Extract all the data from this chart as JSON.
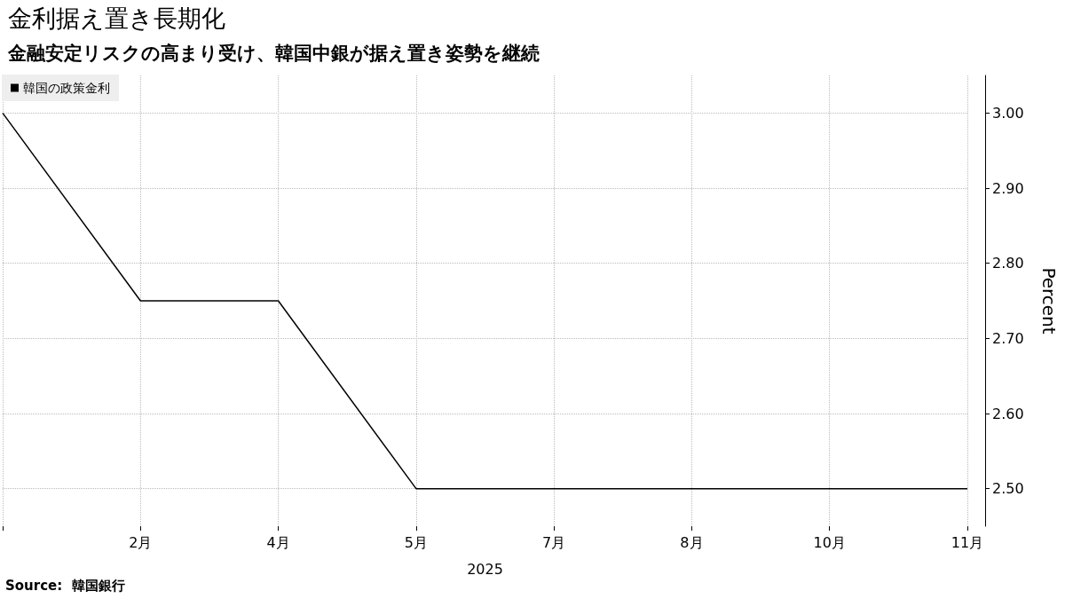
{
  "chart_data": {
    "type": "line",
    "title": "金利据え置き長期化",
    "subtitle": "金融安定リスクの高まり受け、韓国中銀が据え置き姿勢を継続",
    "categories": [
      null,
      "2月",
      "4月",
      "5月",
      "7月",
      "8月",
      "10月",
      "11月"
    ],
    "series": [
      {
        "name": "韓国の政策金利",
        "color": "#000000",
        "values": [
          3.0,
          2.75,
          2.75,
          2.5,
          2.5,
          2.5,
          2.5,
          2.5
        ]
      }
    ],
    "xlabel": "2025",
    "ylabel": "Percent",
    "ylim": [
      2.45,
      3.05
    ],
    "yticks": [
      {
        "value": 2.5,
        "label": "2.50"
      },
      {
        "value": 2.6,
        "label": "2.60"
      },
      {
        "value": 2.7,
        "label": "2.70"
      },
      {
        "value": 2.8,
        "label": "2.80"
      },
      {
        "value": 2.9,
        "label": "2.90"
      },
      {
        "value": 3.0,
        "label": "3.00"
      }
    ],
    "grid": true,
    "legend": "top left",
    "marker": "none",
    "line_style": "solid",
    "annotations": [
      "Source:  韓国銀行"
    ]
  }
}
